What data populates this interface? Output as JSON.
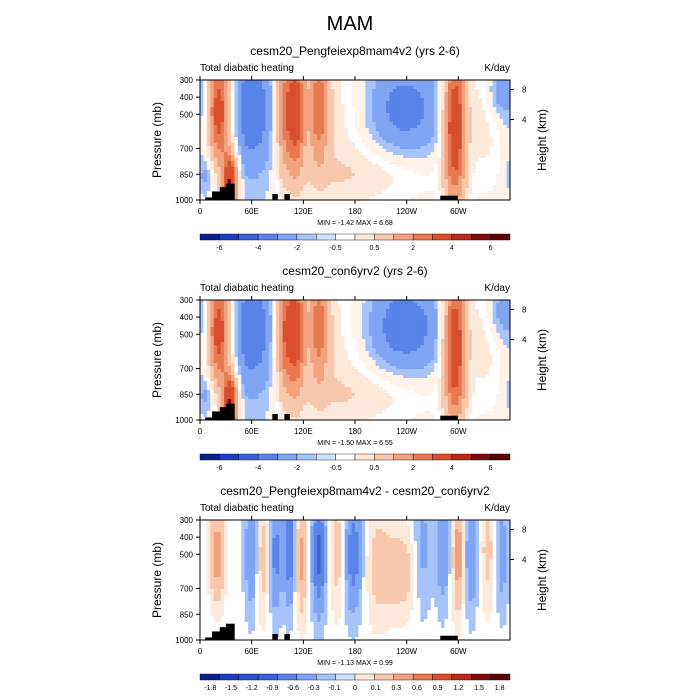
{
  "main_title": "MAM",
  "palette": {
    "neg_colors": [
      "#08208c",
      "#1a3fbf",
      "#3a62d8",
      "#5a83e8",
      "#7fa4f4",
      "#a6c4fa",
      "#cfe0fc"
    ],
    "pos_colors": [
      "#fde9da",
      "#f8c8ad",
      "#f2a27f",
      "#e8784f",
      "#d94f2d",
      "#b8291a",
      "#7a0c0c"
    ],
    "land_color": "#000000"
  },
  "chart_data": [
    {
      "type": "heatmap",
      "title": "cesm20_Pengfeiexp8mam4v2 (yrs 2-6)",
      "left_label": "Total diabatic heating",
      "right_label": "K/day",
      "xlabel": "",
      "ylabel": "Pressure (mb)",
      "y2label": "Height (km)",
      "x_ticks": [
        "0",
        "60E",
        "120E",
        "180",
        "120W",
        "60W"
      ],
      "x_tick_values": [
        0,
        60,
        120,
        180,
        240,
        300
      ],
      "xlim": [
        0,
        360
      ],
      "y_ticks": [
        "300",
        "400",
        "500",
        "700",
        "850",
        "1000"
      ],
      "y_tick_values": [
        300,
        400,
        500,
        700,
        850,
        1000
      ],
      "ylim": [
        1000,
        300
      ],
      "y2_ticks": [
        "4",
        "8"
      ],
      "y2_tick_values": [
        4,
        8
      ],
      "minmax_label": "MIN =  -1.42  MAX =   6.68",
      "colorbar_labels": [
        "-6",
        "-4",
        "-2",
        "-0.5",
        "0.5",
        "2",
        "4",
        "6"
      ],
      "field": {
        "amp": 1,
        "kind": "mean",
        "features": [
          {
            "lon": 22,
            "p": 480,
            "dlon": 9,
            "dp": 230,
            "value": 5
          },
          {
            "lon": 35,
            "p": 900,
            "dlon": 6,
            "dp": 120,
            "value": 6
          },
          {
            "lon": 62,
            "p": 480,
            "dlon": 22,
            "dp": 300,
            "value": -1.4
          },
          {
            "lon": 98,
            "p": 480,
            "dlon": 7,
            "dp": 260,
            "value": 3.2
          },
          {
            "lon": 112,
            "p": 480,
            "dlon": 7,
            "dp": 260,
            "value": 4.4
          },
          {
            "lon": 138,
            "p": 450,
            "dlon": 8,
            "dp": 240,
            "value": 3.2
          },
          {
            "lon": 160,
            "p": 520,
            "dlon": 40,
            "dp": 320,
            "value": 1.0
          },
          {
            "lon": 228,
            "p": 470,
            "dlon": 42,
            "dp": 230,
            "value": -1.4
          },
          {
            "lon": 200,
            "p": 860,
            "dlon": 60,
            "dp": 110,
            "value": 0.7
          },
          {
            "lon": 296,
            "p": 560,
            "dlon": 9,
            "dp": 320,
            "value": 5.5
          },
          {
            "lon": 330,
            "p": 500,
            "dlon": 16,
            "dp": 260,
            "value": 0.8
          },
          {
            "lon": 345,
            "p": 380,
            "dlon": 10,
            "dp": 120,
            "value": -1.0
          },
          {
            "lon": 3,
            "p": 430,
            "dlon": 8,
            "dp": 200,
            "value": -0.6
          },
          {
            "lon": 8,
            "p": 850,
            "dlon": 8,
            "dp": 90,
            "value": -0.8
          }
        ]
      }
    },
    {
      "type": "heatmap",
      "title": "cesm20_con6yrv2 (yrs 2-6)",
      "left_label": "Total diabatic heating",
      "right_label": "K/day",
      "xlabel": "",
      "ylabel": "Pressure (mb)",
      "y2label": "Height (km)",
      "x_ticks": [
        "0",
        "60E",
        "120E",
        "180",
        "120W",
        "60W"
      ],
      "x_tick_values": [
        0,
        60,
        120,
        180,
        240,
        300
      ],
      "xlim": [
        0,
        360
      ],
      "y_ticks": [
        "300",
        "400",
        "500",
        "700",
        "850",
        "1000"
      ],
      "y_tick_values": [
        300,
        400,
        500,
        700,
        850,
        1000
      ],
      "ylim": [
        1000,
        300
      ],
      "y2_ticks": [
        "4",
        "8"
      ],
      "y2_tick_values": [
        4,
        8
      ],
      "minmax_label": "MIN =  -1.50  MAX =   6.55",
      "colorbar_labels": [
        "-6",
        "-4",
        "-2",
        "-0.5",
        "0.5",
        "2",
        "4",
        "6"
      ],
      "field": {
        "amp": 1,
        "kind": "mean",
        "features": [
          {
            "lon": 22,
            "p": 480,
            "dlon": 9,
            "dp": 230,
            "value": 5
          },
          {
            "lon": 35,
            "p": 900,
            "dlon": 6,
            "dp": 120,
            "value": 6
          },
          {
            "lon": 62,
            "p": 480,
            "dlon": 22,
            "dp": 300,
            "value": -1.4
          },
          {
            "lon": 98,
            "p": 480,
            "dlon": 7,
            "dp": 260,
            "value": 3.6
          },
          {
            "lon": 112,
            "p": 480,
            "dlon": 7,
            "dp": 260,
            "value": 4.4
          },
          {
            "lon": 138,
            "p": 450,
            "dlon": 8,
            "dp": 240,
            "value": 3.0
          },
          {
            "lon": 160,
            "p": 520,
            "dlon": 40,
            "dp": 320,
            "value": 1.0
          },
          {
            "lon": 228,
            "p": 460,
            "dlon": 42,
            "dp": 230,
            "value": -1.5
          },
          {
            "lon": 200,
            "p": 860,
            "dlon": 60,
            "dp": 110,
            "value": 0.7
          },
          {
            "lon": 296,
            "p": 560,
            "dlon": 9,
            "dp": 320,
            "value": 5.4
          },
          {
            "lon": 330,
            "p": 500,
            "dlon": 16,
            "dp": 260,
            "value": 0.8
          },
          {
            "lon": 345,
            "p": 380,
            "dlon": 10,
            "dp": 120,
            "value": -0.9
          },
          {
            "lon": 3,
            "p": 430,
            "dlon": 8,
            "dp": 200,
            "value": -0.6
          },
          {
            "lon": 8,
            "p": 850,
            "dlon": 8,
            "dp": 90,
            "value": -0.8
          }
        ]
      }
    },
    {
      "type": "heatmap",
      "title": "cesm20_Pengfeiexp8mam4v2 - cesm20_con6yrv2",
      "left_label": "Total diabatic heating",
      "right_label": "K/day",
      "xlabel": "",
      "ylabel": "Pressure (mb)",
      "y2label": "Height (km)",
      "x_ticks": [
        "0",
        "60E",
        "120E",
        "180",
        "120W",
        "60W"
      ],
      "x_tick_values": [
        0,
        60,
        120,
        180,
        240,
        300
      ],
      "xlim": [
        0,
        360
      ],
      "y_ticks": [
        "300",
        "400",
        "500",
        "700",
        "850",
        "1000"
      ],
      "y_tick_values": [
        300,
        400,
        500,
        700,
        850,
        1000
      ],
      "ylim": [
        1000,
        300
      ],
      "y2_ticks": [
        "4",
        "8"
      ],
      "y2_tick_values": [
        4,
        8
      ],
      "minmax_label": "MIN =  -1.13  MAX =   0.99",
      "colorbar_labels": [
        "-1.8",
        "-1.5",
        "-1.2",
        "-0.9",
        "-0.6",
        "-0.3",
        "-0.1",
        "0",
        "0.1",
        "0.3",
        "0.6",
        "0.9",
        "1.2",
        "1.5",
        "1.8"
      ],
      "field": {
        "amp": 1,
        "kind": "diff",
        "features": [
          {
            "lon": 20,
            "p": 500,
            "dlon": 6,
            "dp": 200,
            "value": 0.8
          },
          {
            "lon": 60,
            "p": 500,
            "dlon": 6,
            "dp": 250,
            "value": -0.6
          },
          {
            "lon": 72,
            "p": 520,
            "dlon": 5,
            "dp": 250,
            "value": 0.5
          },
          {
            "lon": 88,
            "p": 500,
            "dlon": 5,
            "dp": 250,
            "value": -0.7
          },
          {
            "lon": 104,
            "p": 450,
            "dlon": 5,
            "dp": 250,
            "value": -0.9
          },
          {
            "lon": 118,
            "p": 520,
            "dlon": 5,
            "dp": 250,
            "value": 0.7
          },
          {
            "lon": 138,
            "p": 500,
            "dlon": 6,
            "dp": 250,
            "value": -1.0
          },
          {
            "lon": 160,
            "p": 480,
            "dlon": 6,
            "dp": 250,
            "value": 0.5
          },
          {
            "lon": 178,
            "p": 500,
            "dlon": 8,
            "dp": 250,
            "value": -0.8
          },
          {
            "lon": 205,
            "p": 550,
            "dlon": 10,
            "dp": 260,
            "value": 0.3
          },
          {
            "lon": 232,
            "p": 600,
            "dlon": 18,
            "dp": 180,
            "value": 0.5
          },
          {
            "lon": 258,
            "p": 500,
            "dlon": 8,
            "dp": 250,
            "value": -0.5
          },
          {
            "lon": 282,
            "p": 450,
            "dlon": 6,
            "dp": 250,
            "value": -0.6
          },
          {
            "lon": 300,
            "p": 500,
            "dlon": 5,
            "dp": 250,
            "value": 0.8
          },
          {
            "lon": 315,
            "p": 500,
            "dlon": 6,
            "dp": 250,
            "value": -0.6
          },
          {
            "lon": 335,
            "p": 480,
            "dlon": 8,
            "dp": 250,
            "value": 0.4
          },
          {
            "lon": 350,
            "p": 500,
            "dlon": 6,
            "dp": 250,
            "value": -0.5
          }
        ]
      }
    }
  ]
}
